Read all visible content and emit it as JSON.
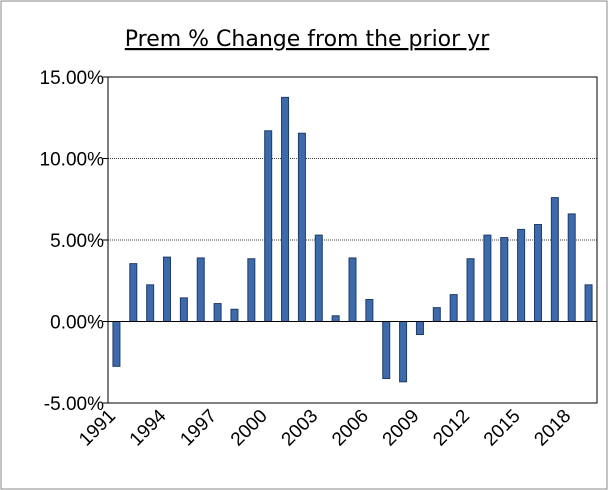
{
  "chart_data": {
    "type": "bar",
    "title": "Prem % Change from the prior yr",
    "categories": [
      "1991",
      null,
      null,
      "1994",
      null,
      null,
      "1997",
      null,
      null,
      "2000",
      null,
      null,
      "2003",
      null,
      null,
      "2006",
      null,
      null,
      "2009",
      null,
      null,
      "2012",
      null,
      null,
      "2015",
      null,
      null,
      "2018",
      null
    ],
    "values": [
      -2.75,
      3.55,
      2.25,
      3.95,
      1.45,
      3.9,
      1.1,
      0.75,
      3.85,
      11.7,
      13.75,
      11.55,
      5.3,
      0.35,
      3.9,
      1.35,
      -3.5,
      -3.7,
      -0.8,
      0.85,
      1.65,
      3.85,
      5.3,
      5.15,
      5.65,
      5.95,
      7.6,
      6.6,
      2.25
    ],
    "color": "#3d6aaa",
    "ylim": [
      -5,
      15
    ],
    "yticks": [
      {
        "value": -5,
        "label": "-5.00%"
      },
      {
        "value": 0,
        "label": "0.00%"
      },
      {
        "value": 5,
        "label": "5.00%"
      },
      {
        "value": 10,
        "label": "10.00%"
      },
      {
        "value": 15,
        "label": "15.00%"
      }
    ],
    "grid": true
  }
}
